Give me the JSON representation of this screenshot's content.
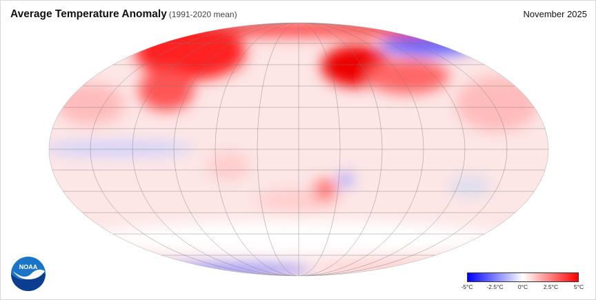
{
  "header": {
    "title": "Average Temperature Anomaly",
    "subtitle": "(1991-2020 mean)",
    "date": "November 2025"
  },
  "legend": {
    "min": -5,
    "max": 5,
    "unit": "°C",
    "ticks": [
      "-5°C",
      "-2.5°C",
      "0°C",
      "2.5°C",
      "5°C"
    ],
    "colors": {
      "cold": "#0000ff",
      "neutral": "#ffffff",
      "warm": "#ff0000"
    }
  },
  "logo": {
    "text": "NOAA"
  }
}
